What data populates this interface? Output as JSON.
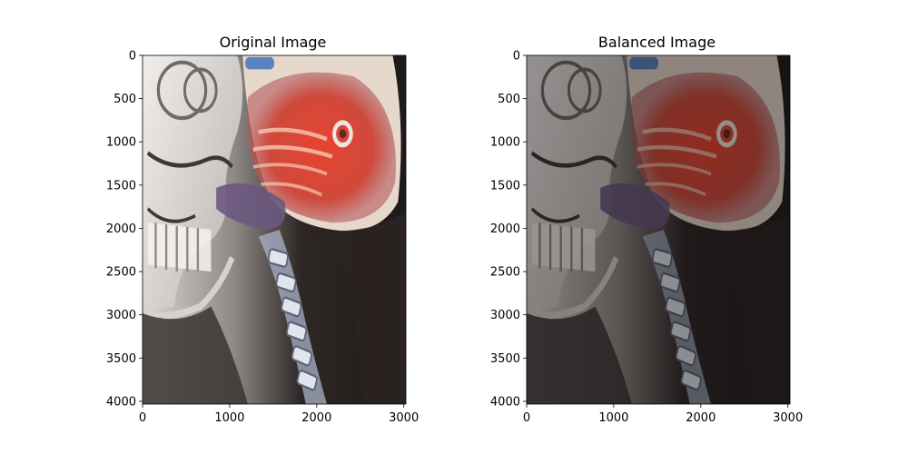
{
  "chart_data": [
    {
      "type": "image",
      "title": "Original Image",
      "xlabel": "",
      "ylabel": "",
      "xlim": [
        0,
        3024
      ],
      "ylim": [
        4032,
        0
      ],
      "x_ticks": [
        0,
        1000,
        2000,
        3000
      ],
      "y_ticks": [
        0,
        500,
        1000,
        1500,
        2000,
        2500,
        3000,
        3500,
        4000
      ],
      "image_description": "lateral neck radiograph with red tissue overlay",
      "brightness": 1.0,
      "grid": false
    },
    {
      "type": "image",
      "title": "Balanced Image",
      "xlabel": "",
      "ylabel": "",
      "xlim": [
        0,
        3024
      ],
      "ylim": [
        4032,
        0
      ],
      "x_ticks": [
        0,
        1000,
        2000,
        3000
      ],
      "y_ticks": [
        0,
        500,
        1000,
        1500,
        2000,
        2500,
        3000,
        3500,
        4000
      ],
      "image_description": "same radiograph after color balancing",
      "brightness": 0.6,
      "grid": false
    }
  ]
}
